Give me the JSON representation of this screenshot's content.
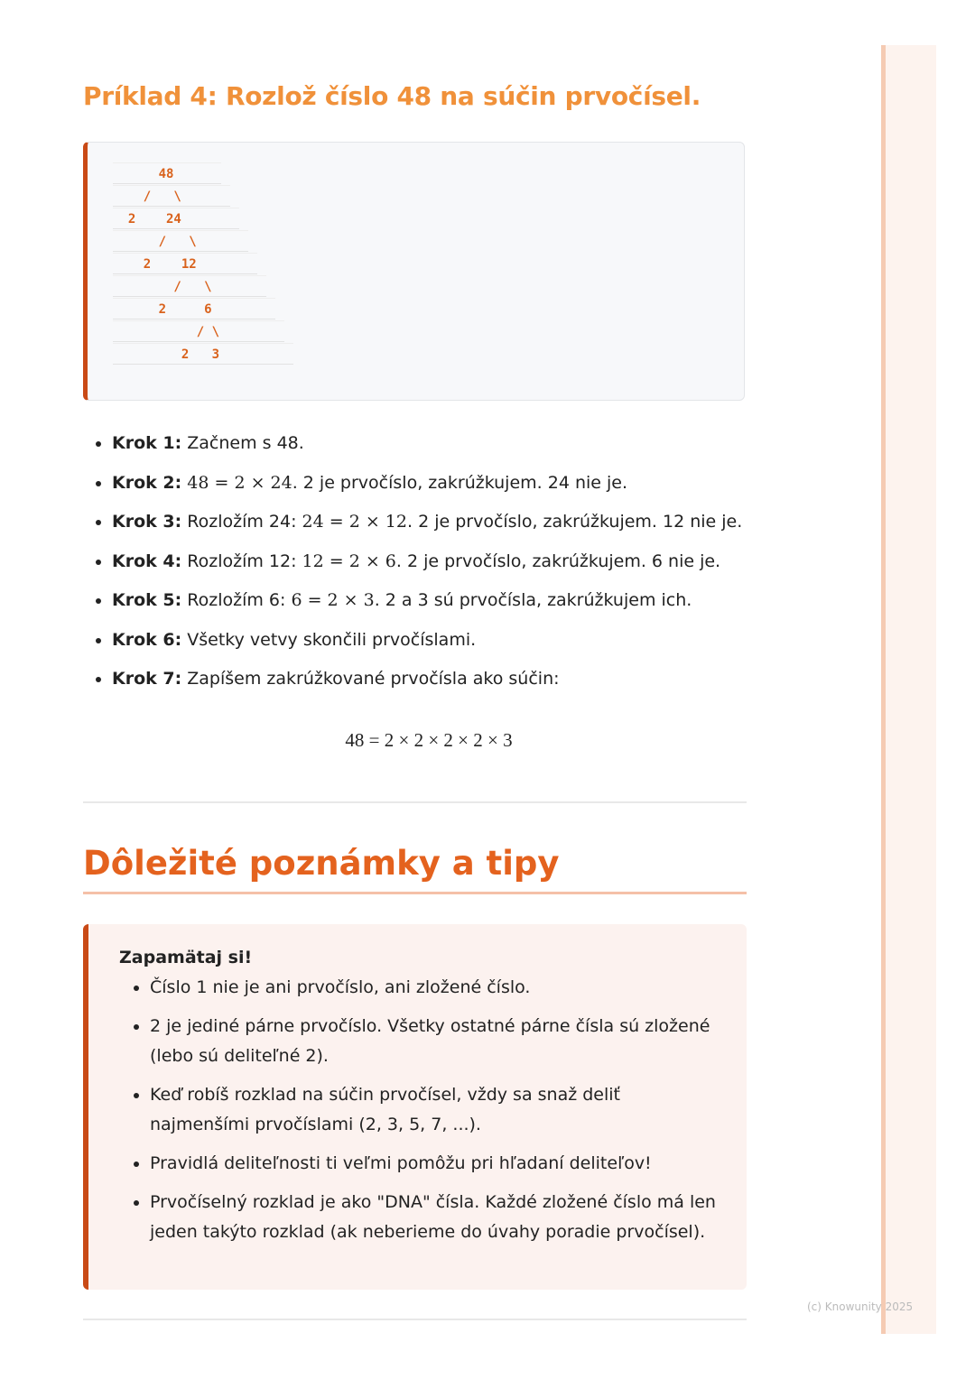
{
  "example": {
    "title": "Príklad 4: Rozlož číslo 48 na súčin prvočísel.",
    "tree_lines": [
      "      48",
      "    /   \\",
      "  2    24",
      "      /   \\",
      "    2    12",
      "        /   \\",
      "      2     6",
      "           / \\",
      "         2   3"
    ]
  },
  "steps": [
    {
      "label": "Krok 1:",
      "text": " Začnem s 48.",
      "math": "",
      "rest": ""
    },
    {
      "label": "Krok 2:",
      "text": " ",
      "math": "48 = 2 × 24",
      "rest": ". 2 je prvočíslo, zakrúžkujem. 24 nie je."
    },
    {
      "label": "Krok 3:",
      "text": " Rozložím 24: ",
      "math": "24 = 2 × 12",
      "rest": ". 2 je prvočíslo, zakrúžkujem. 12 nie je."
    },
    {
      "label": "Krok 4:",
      "text": " Rozložím 12: ",
      "math": "12 = 2 × 6",
      "rest": ". 2 je prvočíslo, zakrúžkujem. 6 nie je."
    },
    {
      "label": "Krok 5:",
      "text": " Rozložím 6: ",
      "math": "6 = 2 × 3",
      "rest": ". 2 a 3 sú prvočísla, zakrúžkujem ich."
    },
    {
      "label": "Krok 6:",
      "text": " Všetky vetvy skončili prvočíslami.",
      "math": "",
      "rest": ""
    },
    {
      "label": "Krok 7:",
      "text": " Zapíšem zakrúžkované prvočísla ako súčin:",
      "math": "",
      "rest": ""
    }
  ],
  "formula": "48 = 2 × 2 × 2 × 2 × 3",
  "notes": {
    "heading": "Dôležité poznámky a tipy",
    "callout_title": "Zapamätaj si!",
    "items": [
      "Číslo 1 nie je ani prvočíslo, ani zložené číslo.",
      "2 je jediné párne prvočíslo. Všetky ostatné párne čísla sú zložené (lebo sú deliteľné 2).",
      "Keď robíš rozklad na súčin prvočísel, vždy sa snaž deliť najmenšími prvočíslami (2, 3, 5, 7, ...).",
      "Pravidlá deliteľnosti ti veľmi pomôžu pri hľadaní deliteľov!",
      "Prvočíselný rozklad je ako \"DNA\" čísla. Každé zložené číslo má len jeden takýto rozklad (ak neberieme do úvahy poradie prvočísel)."
    ]
  },
  "footer": {
    "copyright": "(c) Knowunity 2025"
  },
  "colors": {
    "accent": "#e4621e",
    "title": "#f0913a",
    "border": "#c94a16"
  }
}
